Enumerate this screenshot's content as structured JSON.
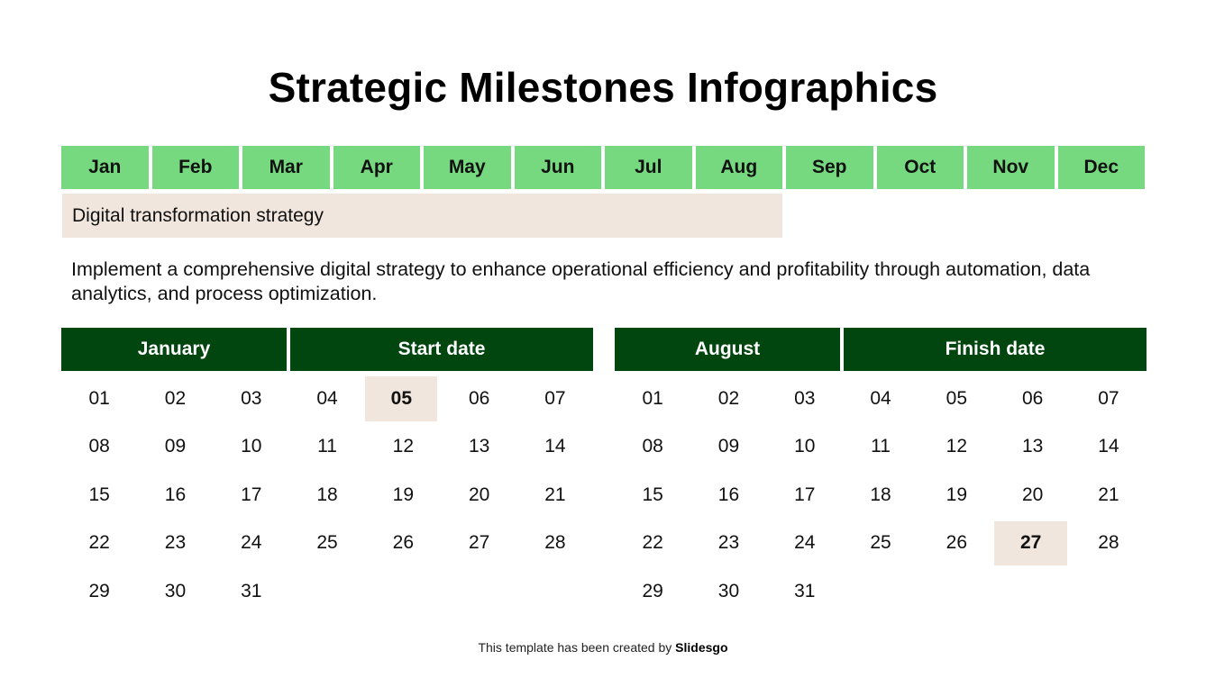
{
  "title": "Strategic Milestones Infographics",
  "months": [
    "Jan",
    "Feb",
    "Mar",
    "Apr",
    "May",
    "Jun",
    "Jul",
    "Aug",
    "Sep",
    "Oct",
    "Nov",
    "Dec"
  ],
  "timeline_bar": {
    "label": "Digital transformation strategy",
    "start_month": "Jan",
    "end_month": "Aug",
    "color": "#f0e6dd"
  },
  "description": "Implement a comprehensive digital strategy to enhance operational efficiency and profitability through automation, data analytics, and process optimization.",
  "calendars": [
    {
      "month": "January",
      "label": "Start date",
      "highlight": "05",
      "days": [
        "01",
        "02",
        "03",
        "04",
        "05",
        "06",
        "07",
        "08",
        "09",
        "10",
        "11",
        "12",
        "13",
        "14",
        "15",
        "16",
        "17",
        "18",
        "19",
        "20",
        "21",
        "22",
        "23",
        "24",
        "25",
        "26",
        "27",
        "28",
        "29",
        "30",
        "31"
      ]
    },
    {
      "month": "August",
      "label": "Finish date",
      "highlight": "27",
      "days": [
        "01",
        "02",
        "03",
        "04",
        "05",
        "06",
        "07",
        "08",
        "09",
        "10",
        "11",
        "12",
        "13",
        "14",
        "15",
        "16",
        "17",
        "18",
        "19",
        "20",
        "21",
        "22",
        "23",
        "24",
        "25",
        "26",
        "27",
        "28",
        "29",
        "30",
        "31"
      ]
    }
  ],
  "footer": {
    "prefix": "This template has been created by ",
    "brand": "Slidesgo"
  },
  "colors": {
    "month_cell": "#76d97f",
    "calendar_header": "#01450f",
    "highlight": "#f0e6dd"
  }
}
